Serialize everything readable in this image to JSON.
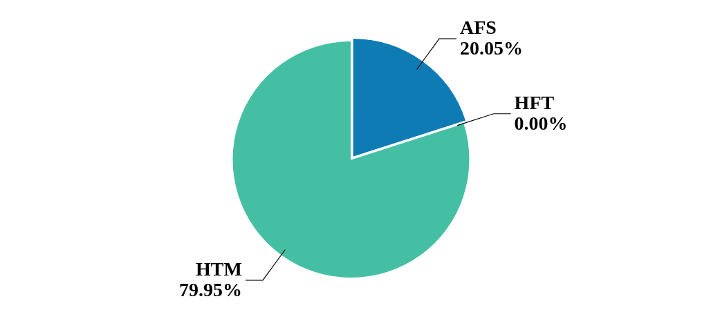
{
  "chart_data": {
    "type": "pie",
    "categories": [
      "AFS",
      "HFT",
      "HTM"
    ],
    "values": [
      20.05,
      0.0,
      79.95
    ],
    "colors": [
      "#0e7bb5",
      "#1f4653",
      "#45bfa4"
    ],
    "value_labels": [
      "20.05%",
      "0.00%",
      "79.95%"
    ],
    "legend": false
  }
}
